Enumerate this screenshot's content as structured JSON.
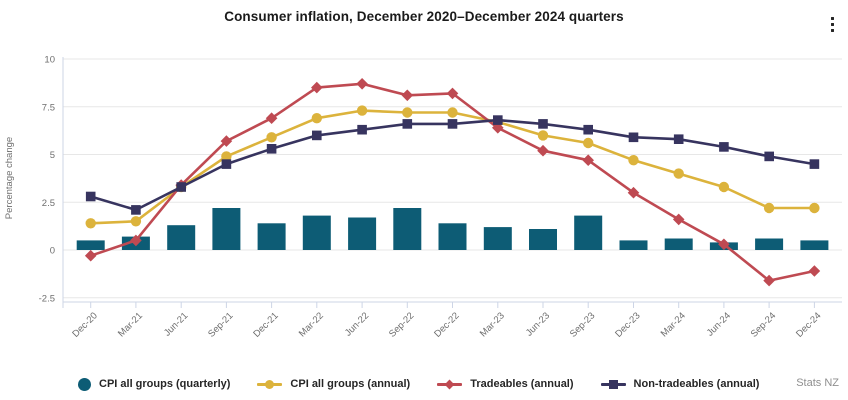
{
  "chart_data": {
    "type": "combo-bar-line",
    "title": "Consumer inflation, December 2020–December 2024 quarters",
    "xlabel": "",
    "ylabel": "Percentage change",
    "ylim": [
      -2.5,
      10
    ],
    "yticks": [
      10,
      7.5,
      5,
      2.5,
      0,
      -2.5
    ],
    "grid": "horizontal",
    "legend_position": "bottom",
    "categories": [
      "Dec-20",
      "Mar-21",
      "Jun-21",
      "Sep-21",
      "Dec-21",
      "Mar-22",
      "Jun-22",
      "Sep-22",
      "Dec-22",
      "Mar-23",
      "Jun-23",
      "Sep-23",
      "Dec-23",
      "Mar-24",
      "Jun-24",
      "Sep-24",
      "Dec-24"
    ],
    "series": [
      {
        "name": "CPI all groups (quarterly)",
        "type": "bar",
        "marker": "circle",
        "color": "#0d5c75",
        "values": [
          0.5,
          0.7,
          1.3,
          2.2,
          1.4,
          1.8,
          1.7,
          2.2,
          1.4,
          1.2,
          1.1,
          1.8,
          0.5,
          0.6,
          0.4,
          0.6,
          0.5
        ]
      },
      {
        "name": "CPI all groups (annual)",
        "type": "line",
        "marker": "circle",
        "color": "#dcb33c",
        "values": [
          1.4,
          1.5,
          3.3,
          4.9,
          5.9,
          6.9,
          7.3,
          7.2,
          7.2,
          6.7,
          6.0,
          5.6,
          4.7,
          4.0,
          3.3,
          2.2,
          2.2
        ]
      },
      {
        "name": "Tradeables (annual)",
        "type": "line",
        "marker": "diamond",
        "color": "#bf4a52",
        "values": [
          -0.3,
          0.5,
          3.4,
          5.7,
          6.9,
          8.5,
          8.7,
          8.1,
          8.2,
          6.4,
          5.2,
          4.7,
          3.0,
          1.6,
          0.3,
          -1.6,
          -1.1
        ]
      },
      {
        "name": "Non-tradeables (annual)",
        "type": "line",
        "marker": "square",
        "color": "#37345f",
        "values": [
          2.8,
          2.1,
          3.3,
          4.5,
          5.3,
          6.0,
          6.3,
          6.6,
          6.6,
          6.8,
          6.6,
          6.3,
          5.9,
          5.8,
          5.4,
          4.9,
          4.5
        ]
      }
    ],
    "axis_colors": {
      "gridline": "#e7e7e7",
      "axis_line": "#cdd5e6",
      "tick_label": "#6e6e6e"
    }
  },
  "footer": {
    "source": "Stats NZ"
  }
}
